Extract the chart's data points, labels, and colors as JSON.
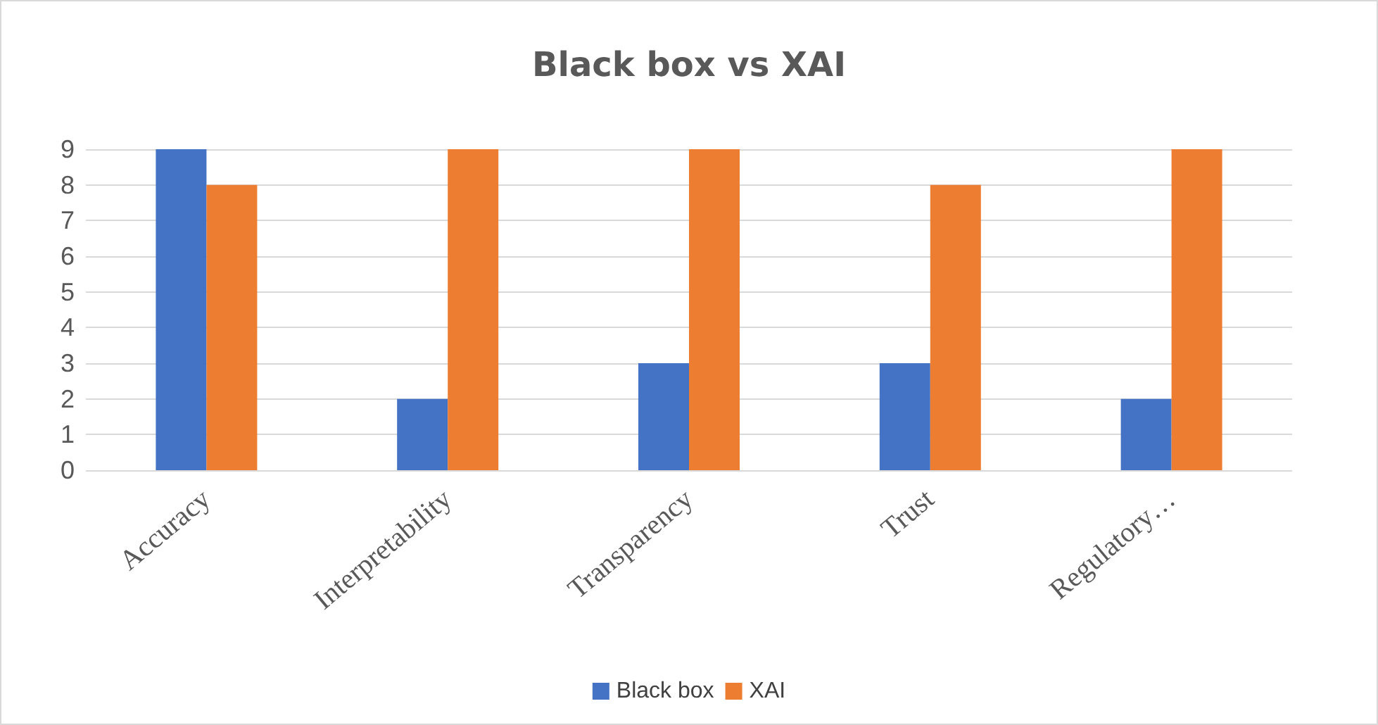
{
  "chart_data": {
    "type": "bar",
    "title": "Black box vs XAI",
    "categories": [
      "Accuracy",
      "Interpretability",
      "Transparency",
      "Trust",
      "Regulatory…"
    ],
    "series": [
      {
        "name": "Black box",
        "color": "#4472c4",
        "values": [
          9,
          2,
          3,
          3,
          2
        ]
      },
      {
        "name": "XAI",
        "color": "#ed7d31",
        "values": [
          8,
          9,
          9,
          8,
          9
        ]
      }
    ],
    "ylim": [
      0,
      9
    ],
    "yticks": [
      0,
      1,
      2,
      3,
      4,
      5,
      6,
      7,
      8,
      9
    ],
    "grid": "y",
    "legend": "bottom"
  }
}
